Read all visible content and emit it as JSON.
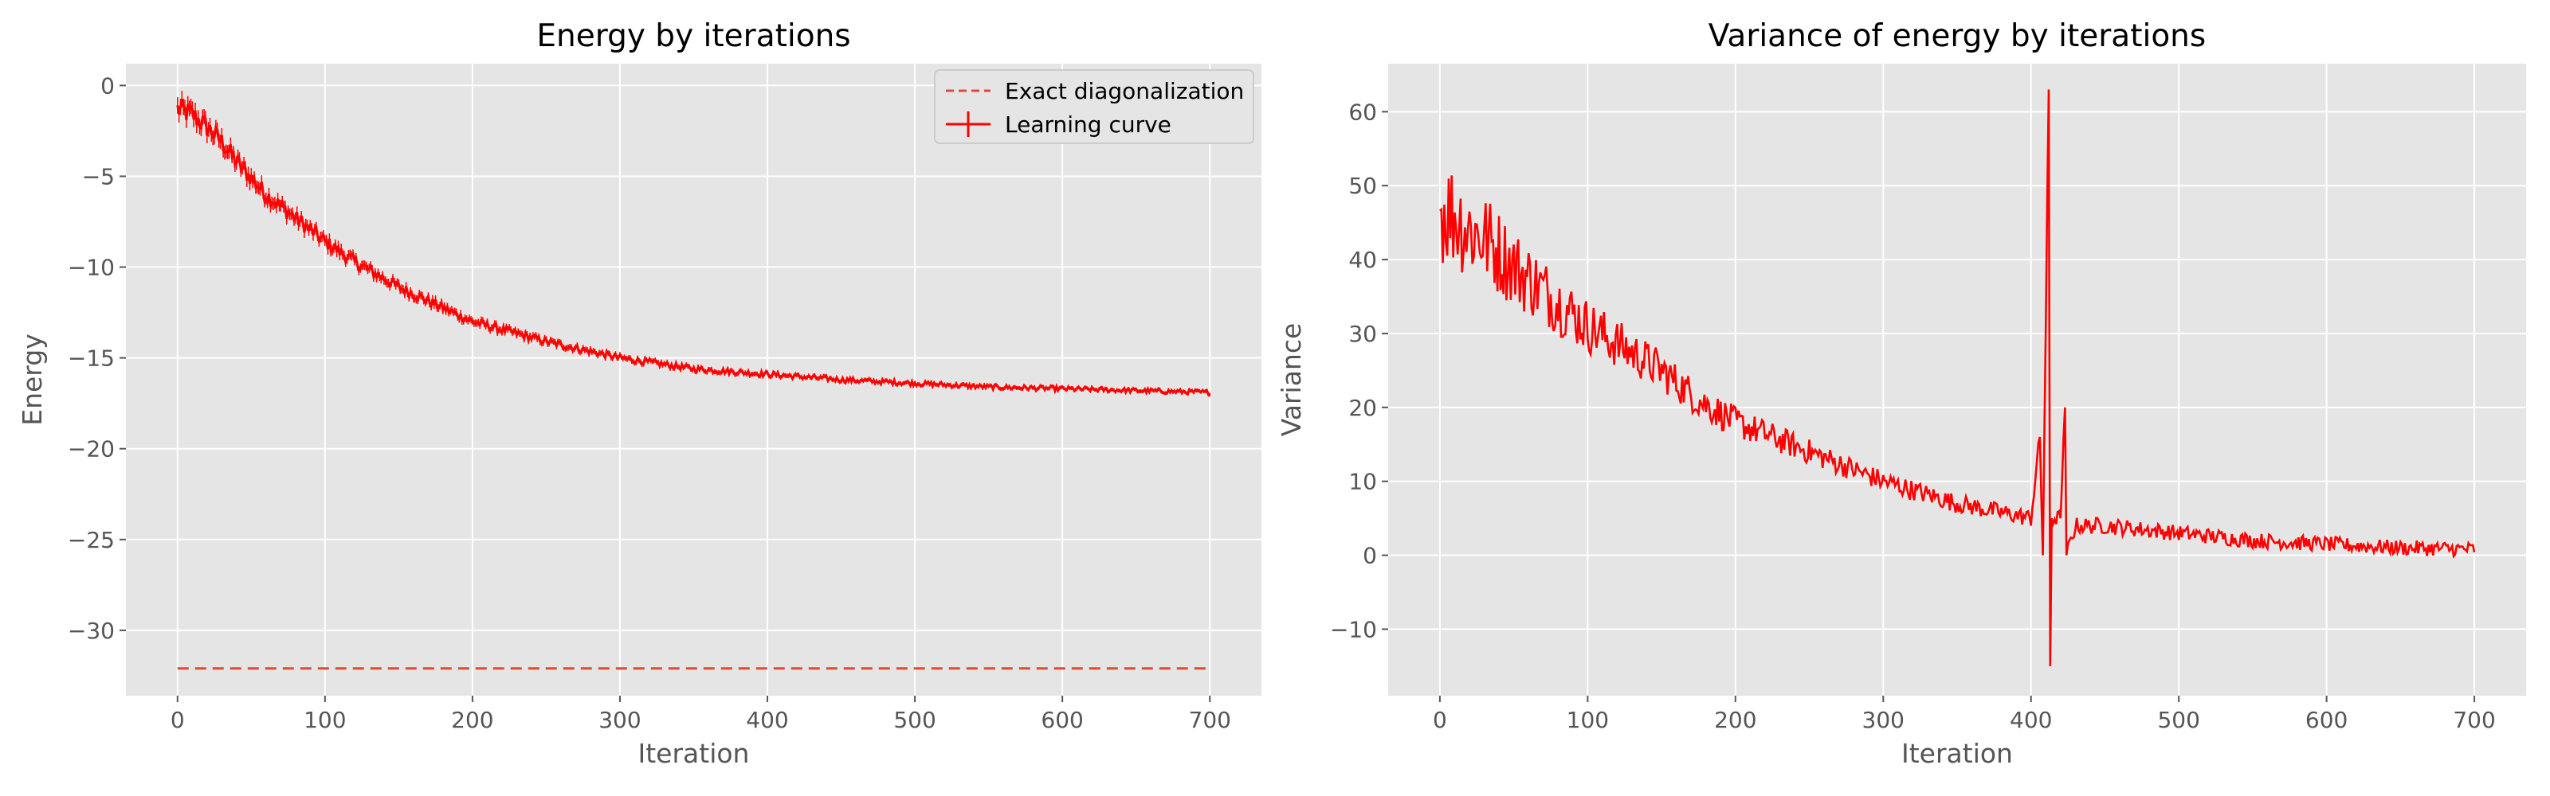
{
  "chart_data": [
    {
      "type": "line",
      "title": "Energy by iterations",
      "xlabel": "Iteration",
      "ylabel": "Energy",
      "xlim": [
        -35,
        735
      ],
      "ylim": [
        -33.6,
        1.2
      ],
      "xticks": [
        0,
        100,
        200,
        300,
        400,
        500,
        600,
        700
      ],
      "xtick_labels": [
        "0",
        "100",
        "200",
        "300",
        "400",
        "500",
        "600",
        "700"
      ],
      "yticks": [
        0,
        -5,
        -10,
        -15,
        -20,
        -25,
        -30
      ],
      "ytick_labels": [
        "0",
        "−5",
        "−10",
        "−15",
        "−20",
        "−25",
        "−30"
      ],
      "grid": true,
      "legend_position": "top-right",
      "series": [
        {
          "name": "Exact diagonalization",
          "style": "dashed",
          "color": "#e24a33",
          "x": [
            0,
            700
          ],
          "y": [
            -32.1,
            -32.1
          ]
        },
        {
          "name": "Learning curve",
          "style": "solid with error bars",
          "color": "#ff0000",
          "x": [
            0,
            10,
            20,
            30,
            40,
            50,
            60,
            80,
            100,
            120,
            150,
            200,
            250,
            300,
            350,
            400,
            450,
            500,
            550,
            600,
            650,
            700
          ],
          "y": [
            -1.3,
            -1.6,
            -2.3,
            -3.1,
            -4.2,
            -5.1,
            -6.0,
            -7.3,
            -8.6,
            -9.7,
            -11.1,
            -13.0,
            -14.1,
            -15.0,
            -15.6,
            -15.9,
            -16.2,
            -16.4,
            -16.6,
            -16.7,
            -16.8,
            -16.9
          ]
        }
      ]
    },
    {
      "type": "line",
      "title": "Variance of energy by iterations",
      "xlabel": "Iteration",
      "ylabel": "Variance",
      "xlim": [
        -35,
        735
      ],
      "ylim": [
        -19,
        66.5
      ],
      "xticks": [
        0,
        100,
        200,
        300,
        400,
        500,
        600,
        700
      ],
      "xtick_labels": [
        "0",
        "100",
        "200",
        "300",
        "400",
        "500",
        "600",
        "700"
      ],
      "yticks": [
        60,
        50,
        40,
        30,
        20,
        10,
        0,
        -10
      ],
      "ytick_labels": [
        "60",
        "50",
        "40",
        "30",
        "20",
        "10",
        "0",
        "−10"
      ],
      "grid": true,
      "series": [
        {
          "color": "#ff0000",
          "x": [
            0,
            10,
            20,
            30,
            50,
            75,
            100,
            125,
            150,
            175,
            200,
            250,
            300,
            350,
            400,
            406,
            408,
            412,
            413,
            414,
            420,
            423,
            424,
            430,
            450,
            500,
            550,
            600,
            650,
            700
          ],
          "y": [
            47,
            46,
            44,
            43,
            39,
            35,
            31,
            28,
            25,
            21,
            18,
            14,
            10,
            7,
            5,
            16,
            0,
            63,
            -15,
            5,
            5,
            20,
            0,
            4,
            4,
            3,
            2,
            1.5,
            1,
            0.8
          ]
        }
      ]
    }
  ]
}
